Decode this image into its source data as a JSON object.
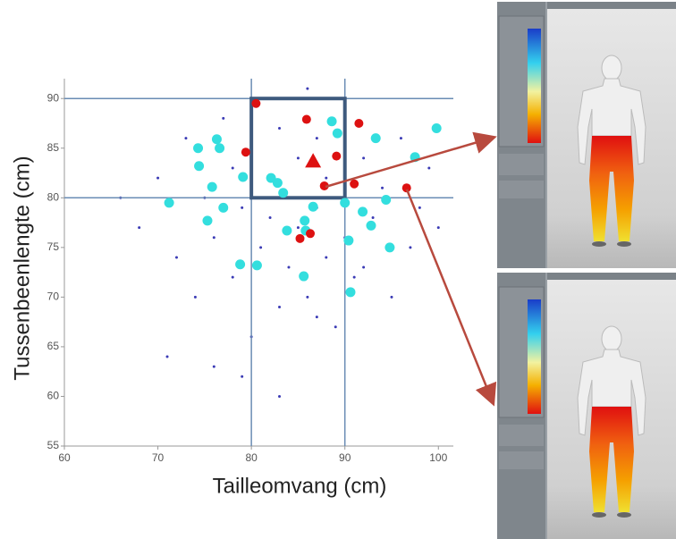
{
  "chart_data": {
    "type": "scatter",
    "x_label": "Tailleomvang (cm)",
    "y_label": "Tussenbeenlengte (cm)",
    "xlim": [
      60,
      101.6
    ],
    "ylim": [
      55,
      92
    ],
    "xticks": [
      60,
      70,
      80,
      90,
      100
    ],
    "yticks": [
      55,
      60,
      65,
      70,
      75,
      80,
      85,
      90
    ],
    "reference_lines": {
      "x": [
        80,
        90
      ],
      "y": [
        80,
        90
      ]
    },
    "highlight_box": {
      "x": [
        80,
        90
      ],
      "y": [
        80,
        90
      ]
    },
    "series": [
      {
        "color": "#3b3bb5",
        "marker": "dot",
        "size": 1.5,
        "x": [
          68,
          70,
          72,
          73,
          74,
          75,
          76,
          77,
          78,
          78,
          79,
          80,
          80,
          81,
          81,
          82,
          82,
          83,
          83,
          84,
          84,
          85,
          85,
          86,
          86,
          87,
          87,
          88,
          88,
          89,
          89,
          90,
          90,
          91,
          92,
          93,
          94,
          95,
          96,
          97,
          98,
          99,
          100,
          66,
          71,
          76,
          79,
          83,
          87,
          92
        ],
        "values": [
          77,
          82,
          74,
          86,
          70,
          80,
          76,
          88,
          72,
          83,
          79,
          66,
          85,
          75,
          90,
          78,
          82,
          69,
          87,
          73,
          80,
          84,
          77,
          91,
          70,
          79,
          86,
          74,
          82,
          67,
          80,
          88,
          76,
          72,
          84,
          78,
          81,
          70,
          86,
          75,
          79,
          83,
          77,
          80,
          64,
          63,
          62,
          60,
          68,
          73
        ]
      },
      {
        "color": "#33dede",
        "marker": "dot",
        "size": 5.5,
        "x": [
          99.8,
          97.5,
          93.3,
          88.6,
          89.2,
          76.3,
          76.6,
          74.3,
          74.4,
          79.1,
          82.8,
          83.4,
          75.8,
          71.2,
          77.0,
          75.3,
          86.6,
          90.0,
          91.9,
          94.4,
          85.7,
          85.8,
          83.8,
          92.8,
          90.4,
          94.8,
          78.8,
          80.6,
          85.6,
          90.6,
          82.1
        ],
        "values": [
          87.0,
          84.1,
          86.0,
          87.7,
          86.5,
          85.9,
          85.0,
          85.0,
          83.2,
          82.1,
          81.5,
          80.5,
          81.1,
          79.5,
          79.0,
          77.7,
          79.1,
          79.5,
          78.6,
          79.8,
          77.7,
          76.7,
          76.7,
          77.2,
          75.7,
          75.0,
          73.3,
          73.2,
          72.1,
          70.5,
          82.0
        ]
      },
      {
        "color": "#dd1111",
        "marker": "dot",
        "size": 5,
        "x": [
          80.5,
          85.9,
          91.5,
          79.4,
          89.1,
          87.8,
          91.0,
          96.6,
          86.3,
          85.2
        ],
        "values": [
          89.5,
          87.9,
          87.5,
          84.6,
          84.2,
          81.2,
          81.4,
          81.0,
          76.4,
          75.9
        ]
      },
      {
        "color": "#dd1111",
        "marker": "triangle",
        "size": 9,
        "x": [
          86.6
        ],
        "values": [
          83.7
        ]
      }
    ]
  }
}
